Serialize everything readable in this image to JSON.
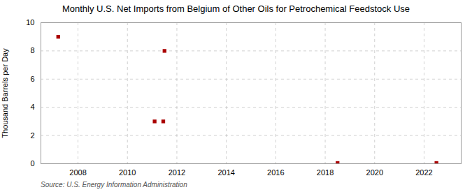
{
  "chart_data": {
    "type": "scatter",
    "title": "Monthly U.S. Net Imports from Belgium of Other Oils for Petrochemical Feedstock Use",
    "ylabel": "Thousand Barrels per Day",
    "annotations": [
      "Source: U.S. Energy Information Administration"
    ],
    "x": [
      2007.2,
      2011.1,
      2011.45,
      2011.5,
      2018.5,
      2022.5
    ],
    "values": [
      9,
      3,
      3,
      8,
      0.05,
      0.05
    ],
    "color": "#aa0000",
    "marker": "square",
    "xlim": [
      2006.5,
      2023.5
    ],
    "ylim": [
      0,
      10
    ],
    "xticks": [
      2008,
      2010,
      2012,
      2014,
      2016,
      2018,
      2020,
      2022
    ],
    "yticks": [
      0,
      2,
      4,
      6,
      8,
      10
    ],
    "grid": true
  }
}
